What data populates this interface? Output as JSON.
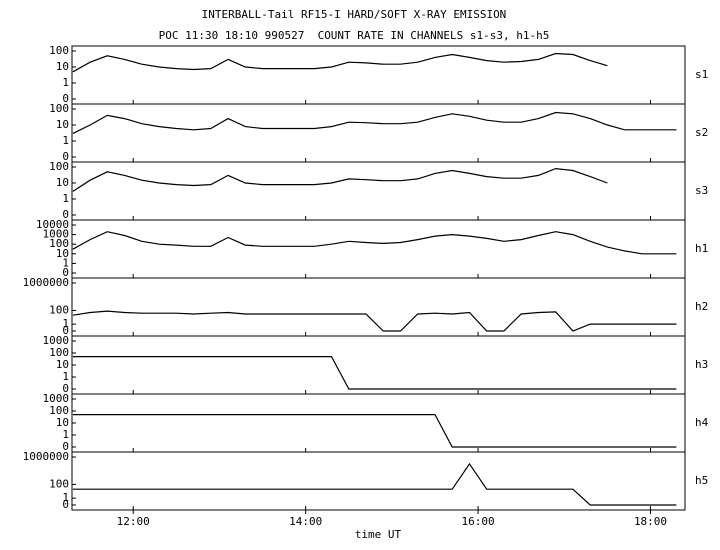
{
  "chart_data": {
    "type": "line",
    "title": "INTERBALL-Tail RF15-I HARD/SOFT X-RAY EMISSION",
    "subtitle": "POC 11:30 18:10 990527  COUNT RATE IN CHANNELS s1-s3, h1-h5",
    "xlabel": "time UT",
    "yscale": "log",
    "xlim": [
      11.29,
      18.4
    ],
    "xticks": [
      {
        "value": 12,
        "label": "12:00"
      },
      {
        "value": 14,
        "label": "14:00"
      },
      {
        "value": 16,
        "label": "16:00"
      },
      {
        "value": 18,
        "label": "18:00"
      }
    ],
    "x": [
      11.3,
      11.5,
      11.7,
      11.9,
      12.1,
      12.3,
      12.5,
      12.7,
      12.9,
      13.1,
      13.3,
      13.5,
      13.7,
      13.9,
      14.1,
      14.3,
      14.5,
      14.7,
      14.9,
      15.1,
      15.3,
      15.5,
      15.7,
      15.9,
      16.1,
      16.3,
      16.5,
      16.7,
      16.9,
      17.1,
      17.3,
      17.5,
      17.7,
      17.9,
      18.1,
      18.3
    ],
    "series": [
      {
        "name": "s1",
        "color": "#000000",
        "ylim": [
          0,
          100
        ],
        "yticks": [
          0,
          1,
          10,
          100
        ],
        "values": [
          5,
          20,
          50,
          30,
          15,
          10,
          8,
          7,
          8,
          30,
          10,
          8,
          8,
          8,
          8,
          10,
          20,
          18,
          15,
          15,
          20,
          40,
          60,
          40,
          25,
          20,
          22,
          30,
          70,
          60,
          25,
          12,
          null,
          null,
          null,
          null
        ]
      },
      {
        "name": "s2",
        "color": "#000000",
        "ylim": [
          0,
          100
        ],
        "yticks": [
          0,
          1,
          10,
          100
        ],
        "values": [
          3,
          10,
          40,
          25,
          12,
          8,
          6,
          5,
          6,
          25,
          8,
          6,
          6,
          6,
          6,
          8,
          15,
          14,
          12,
          12,
          15,
          30,
          50,
          35,
          20,
          15,
          15,
          25,
          60,
          50,
          25,
          10,
          5,
          5,
          5,
          5
        ]
      },
      {
        "name": "s3",
        "color": "#000000",
        "ylim": [
          0,
          100
        ],
        "yticks": [
          0,
          1,
          10,
          100
        ],
        "values": [
          3,
          15,
          50,
          30,
          15,
          10,
          8,
          7,
          8,
          30,
          10,
          8,
          8,
          8,
          8,
          10,
          18,
          16,
          14,
          14,
          18,
          40,
          60,
          40,
          25,
          20,
          20,
          30,
          80,
          60,
          25,
          10,
          null,
          null,
          null,
          null
        ]
      },
      {
        "name": "h1",
        "color": "#000000",
        "ylim": [
          0,
          10000
        ],
        "yticks": [
          0,
          1,
          10,
          100,
          1000,
          10000
        ],
        "values": [
          30,
          300,
          2000,
          800,
          200,
          100,
          80,
          60,
          60,
          500,
          80,
          60,
          60,
          60,
          60,
          100,
          200,
          150,
          120,
          150,
          300,
          700,
          1000,
          700,
          400,
          200,
          300,
          800,
          2000,
          1000,
          200,
          50,
          20,
          10,
          10,
          10
        ]
      },
      {
        "name": "h2",
        "color": "#000000",
        "ylim": [
          0,
          1000000
        ],
        "yticks": [
          0,
          1,
          100,
          1000000
        ],
        "values": [
          20,
          50,
          80,
          50,
          40,
          40,
          40,
          30,
          40,
          50,
          30,
          30,
          30,
          30,
          30,
          30,
          30,
          30,
          0,
          0,
          30,
          40,
          30,
          50,
          0,
          0,
          30,
          50,
          60,
          0,
          1,
          1,
          1,
          1,
          1,
          1
        ]
      },
      {
        "name": "h3",
        "color": "#000000",
        "ylim": [
          0,
          1000
        ],
        "yticks": [
          0,
          1,
          10,
          100,
          1000
        ],
        "values": [
          50,
          50,
          50,
          50,
          50,
          50,
          50,
          50,
          50,
          50,
          50,
          50,
          50,
          50,
          50,
          50,
          0,
          0,
          0,
          0,
          0,
          0,
          0,
          0,
          0,
          0,
          0,
          0,
          0,
          0,
          0,
          0,
          0,
          0,
          0,
          0
        ]
      },
      {
        "name": "h4",
        "color": "#000000",
        "ylim": [
          0,
          1000
        ],
        "yticks": [
          0,
          1,
          10,
          100,
          1000
        ],
        "values": [
          50,
          50,
          50,
          50,
          50,
          50,
          50,
          50,
          50,
          50,
          50,
          50,
          50,
          50,
          50,
          50,
          50,
          50,
          50,
          50,
          50,
          50,
          0,
          0,
          0,
          0,
          0,
          0,
          0,
          0,
          0,
          0,
          0,
          0,
          0,
          0
        ]
      },
      {
        "name": "h5",
        "color": "#000000",
        "ylim": [
          0,
          1000000
        ],
        "yticks": [
          0,
          1,
          100,
          1000000
        ],
        "values": [
          20,
          20,
          20,
          20,
          20,
          20,
          20,
          20,
          20,
          20,
          20,
          20,
          20,
          20,
          20,
          20,
          20,
          20,
          20,
          20,
          20,
          20,
          20,
          100000,
          20,
          20,
          20,
          20,
          20,
          20,
          0,
          0,
          0,
          0,
          0,
          0
        ]
      }
    ]
  }
}
